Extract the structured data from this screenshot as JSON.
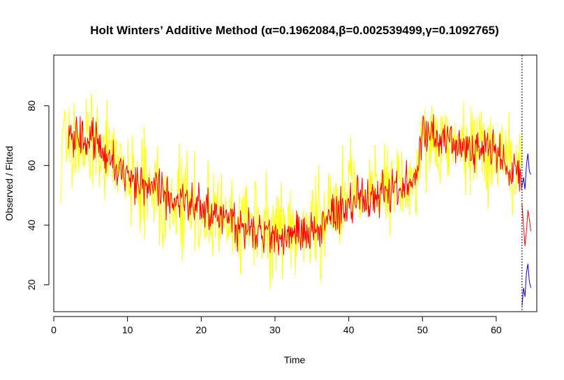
{
  "chart_data": {
    "type": "line",
    "title": "Holt Winters’ Additive Method (α=0.1962084,β=0.002539499,γ=0.1092765)",
    "xlabel": "Time",
    "ylabel": "Observed / Fitted",
    "xlim": [
      0,
      65.5
    ],
    "ylim": [
      11,
      97
    ],
    "xticks": [
      0,
      10,
      20,
      30,
      40,
      50,
      60
    ],
    "yticks": [
      20,
      40,
      60,
      80
    ],
    "forecast_start": 63.5,
    "colors": {
      "observed": "#ffff00",
      "fitted": "#ff0000",
      "forecast": "#0000ff",
      "interval": "#ff0000",
      "divider": "#000000"
    },
    "trend_anchors": {
      "x": [
        1,
        5,
        10,
        20,
        30,
        35,
        40,
        45,
        49,
        50,
        55,
        60,
        63.5
      ],
      "y": [
        66,
        70,
        56,
        45,
        36,
        38,
        48,
        51,
        56,
        72,
        66,
        65,
        54
      ]
    },
    "series": [
      {
        "name": "Observed",
        "kind": "observed",
        "x_range": [
          1,
          63.5
        ],
        "amplitude": 16
      },
      {
        "name": "Fitted",
        "kind": "fitted",
        "x_range": [
          2,
          63.5
        ],
        "amplitude": 7
      },
      {
        "name": "Forecast",
        "kind": "forecast",
        "x": [
          63.5,
          63.7,
          63.9,
          64.1,
          64.3,
          64.5,
          64.7
        ],
        "y": [
          53,
          56,
          52,
          60,
          64,
          58,
          57
        ]
      },
      {
        "name": "Upper 95%",
        "kind": "interval",
        "x": [
          63.5,
          63.7,
          63.9,
          64.1,
          64.3,
          64.5,
          64.7
        ],
        "y": [
          47,
          40,
          33,
          38,
          45,
          42,
          38
        ]
      },
      {
        "name": "Lower 95%",
        "kind": "forecast",
        "x": [
          63.5,
          63.7,
          63.9,
          64.1,
          64.3,
          64.5,
          64.7
        ],
        "y": [
          13,
          19,
          16,
          24,
          27,
          21,
          19
        ]
      }
    ],
    "grid": false,
    "legend": "none"
  }
}
